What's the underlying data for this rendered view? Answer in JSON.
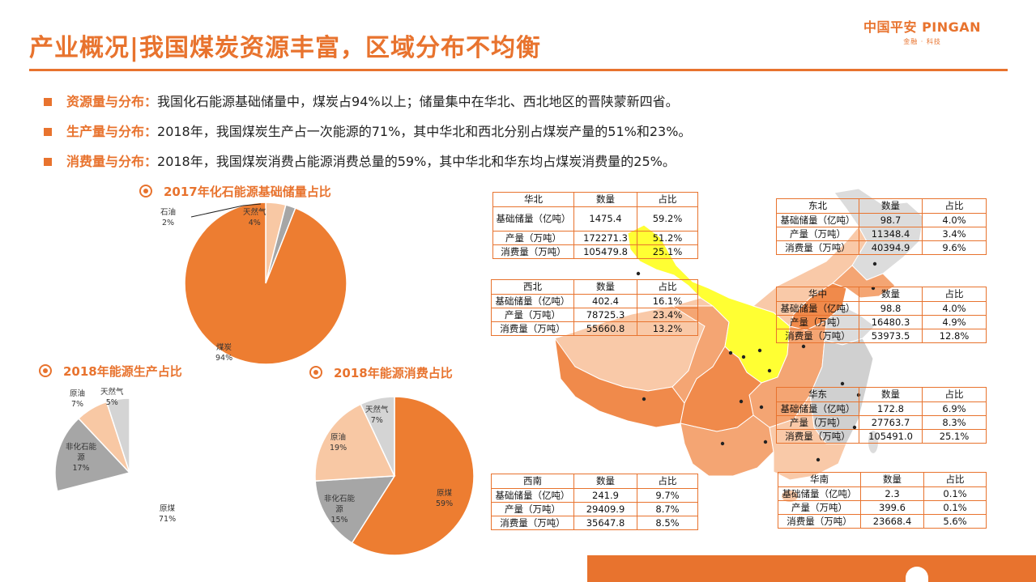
{
  "header": {
    "title": "产业概况|我国煤炭资源丰富，区域分布不均衡",
    "logo_main": "中国平安 PINGAN",
    "logo_sub": "金融 · 科技"
  },
  "bullets": [
    {
      "key": "资源量与分布：",
      "text": "我国化石能源基础储量中，煤炭占94%以上；储量集中在华北、西北地区的晋陕蒙新四省。"
    },
    {
      "key": "生产量与分布：",
      "text": "2018年，我国煤炭生产占一次能源的71%，其中华北和西北分别占煤炭产量的51%和23%。"
    },
    {
      "key": "消费量与分布：",
      "text": "2018年，我国煤炭消费占能源消费总量的59%，其中华北和华东均占煤炭消费量的25%。"
    }
  ],
  "colors": {
    "accent": "#e8732e",
    "coal": "#ed7d31",
    "oil_light": "#f8c8a4",
    "gas_gray": "#d4d4d4",
    "nonfossil_gray": "#a6a6a6",
    "map_yellow": "#ffff33",
    "map_orange_dark": "#f08a4b",
    "map_orange_light": "#f9c9a8",
    "map_gray": "#dcdcdc"
  },
  "chart_data": [
    {
      "type": "pie",
      "title": "2017年化石能源基础储量占比",
      "slices": [
        {
          "label": "煤炭",
          "value": 94,
          "display": "94%",
          "color": "#ed7d31"
        },
        {
          "label": "石油",
          "value": 2,
          "display": "2%",
          "color": "#a6a6a6"
        },
        {
          "label": "天然气",
          "value": 4,
          "display": "4%",
          "color": "#f8c8a4"
        }
      ]
    },
    {
      "type": "pie",
      "title": "2018年能源生产占比",
      "slices": [
        {
          "label": "原煤",
          "value": 71,
          "display": "71%",
          "color": "#ffffff"
        },
        {
          "label": "非化石能源",
          "value": 17,
          "display": "17%",
          "color": "#a6a6a6"
        },
        {
          "label": "原油",
          "value": 7,
          "display": "7%",
          "color": "#f8c8a4"
        },
        {
          "label": "天然气",
          "value": 5,
          "display": "5%",
          "color": "#d4d4d4"
        }
      ]
    },
    {
      "type": "pie",
      "title": "2018年能源消费占比",
      "slices": [
        {
          "label": "原煤",
          "value": 59,
          "display": "59%",
          "color": "#ed7d31"
        },
        {
          "label": "非化石能源",
          "value": 15,
          "display": "15%",
          "color": "#a6a6a6"
        },
        {
          "label": "原油",
          "value": 19,
          "display": "19%",
          "color": "#f8c8a4"
        },
        {
          "label": "天然气",
          "value": 7,
          "display": "7%",
          "color": "#d4d4d4"
        }
      ]
    },
    {
      "type": "table",
      "columns": [
        "数量",
        "占比"
      ],
      "regions": [
        {
          "name": "华北",
          "rows": [
            {
              "label": "基础储量（亿吨）",
              "value": "1475.4",
              "share": "59.2%"
            },
            {
              "label": "产量（万吨）",
              "value": "172271.3",
              "share": "51.2%"
            },
            {
              "label": "消费量（万吨）",
              "value": "105479.8",
              "share": "25.1%"
            }
          ]
        },
        {
          "name": "西北",
          "rows": [
            {
              "label": "基础储量（亿吨）",
              "value": "402.4",
              "share": "16.1%"
            },
            {
              "label": "产量（万吨）",
              "value": "78725.3",
              "share": "23.4%"
            },
            {
              "label": "消费量（万吨）",
              "value": "55660.8",
              "share": "13.2%"
            }
          ]
        },
        {
          "name": "西南",
          "rows": [
            {
              "label": "基础储量（亿吨）",
              "value": "241.9",
              "share": "9.7%"
            },
            {
              "label": "产量（万吨）",
              "value": "29409.9",
              "share": "8.7%"
            },
            {
              "label": "消费量（万吨）",
              "value": "35647.8",
              "share": "8.5%"
            }
          ]
        },
        {
          "name": "东北",
          "rows": [
            {
              "label": "基础储量（亿吨）",
              "value": "98.7",
              "share": "4.0%"
            },
            {
              "label": "产量（万吨）",
              "value": "11348.4",
              "share": "3.4%"
            },
            {
              "label": "消费量（万吨）",
              "value": "40394.9",
              "share": "9.6%"
            }
          ]
        },
        {
          "name": "华中",
          "rows": [
            {
              "label": "基础储量（亿吨）",
              "value": "98.8",
              "share": "4.0%"
            },
            {
              "label": "产量（万吨）",
              "value": "16480.3",
              "share": "4.9%"
            },
            {
              "label": "消费量（万吨）",
              "value": "53973.5",
              "share": "12.8%"
            }
          ]
        },
        {
          "name": "华东",
          "rows": [
            {
              "label": "基础储量（亿吨）",
              "value": "172.8",
              "share": "6.9%"
            },
            {
              "label": "产量（万吨）",
              "value": "27763.7",
              "share": "8.3%"
            },
            {
              "label": "消费量（万吨）",
              "value": "105491.0",
              "share": "25.1%"
            }
          ]
        },
        {
          "name": "华南",
          "rows": [
            {
              "label": "基础储量（亿吨）",
              "value": "2.3",
              "share": "0.1%"
            },
            {
              "label": "产量（万吨）",
              "value": "399.6",
              "share": "0.1%"
            },
            {
              "label": "消费量（万吨）",
              "value": "23668.4",
              "share": "5.6%"
            }
          ]
        }
      ]
    }
  ]
}
